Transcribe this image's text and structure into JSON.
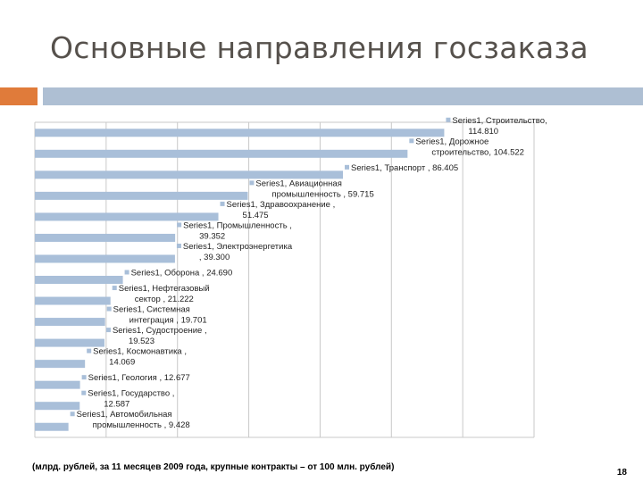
{
  "slide": {
    "title": "Основные направления госзаказа",
    "footnote": "(млрд. рублей, за 11 месяцев 2009 года, крупные контракты – от 100 млн. рублей)",
    "page_number": "18"
  },
  "colors": {
    "bar": "#a9bfd9",
    "grid": "#c8c8c8",
    "accent_orange": "#e07b3a",
    "accent_blue": "#aebfd3",
    "title": "#56514c"
  },
  "chart_data": {
    "type": "bar",
    "orientation": "horizontal",
    "grid": true,
    "xlim": [
      0,
      140
    ],
    "series": [
      {
        "name": "Series1",
        "values": [
          114.81,
          104.522,
          86.405,
          59.715,
          51.475,
          39.352,
          39.3,
          24.69,
          21.222,
          19.701,
          19.523,
          14.069,
          12.677,
          12.587,
          9.428
        ]
      }
    ],
    "categories": [
      "Строительство",
      "Дорожное строительство",
      "Транспорт",
      "Авиационная промышленность",
      "Здравоохранение",
      "Промышленность",
      "Электроэнергетика",
      "Оборона",
      "Нефтегазовый сектор",
      "Системная интеграция",
      "Судостроение",
      "Космонавтика",
      "Геология",
      "Государство",
      "Автомобильная промышленность"
    ],
    "data_labels": [
      [
        "Series1, Строительство,",
        "114.810"
      ],
      [
        "Series1, Дорожное",
        "строительство, 104.522"
      ],
      [
        "Series1, Транспорт , 86.405"
      ],
      [
        "Series1, Авиационная",
        "промышленность , 59.715"
      ],
      [
        "Series1, Здравоохранение ,",
        "51.475"
      ],
      [
        "Series1, Промышленность ,",
        "39.352"
      ],
      [
        "Series1, Электроэнергетика",
        ", 39.300"
      ],
      [
        "Series1, Оборона , 24.690"
      ],
      [
        "Series1, Нефтегазовый",
        "сектор , 21.222"
      ],
      [
        "Series1, Системная",
        "интеграция , 19.701"
      ],
      [
        "Series1, Судостроение ,",
        "19.523"
      ],
      [
        "Series1, Космонавтика ,",
        "14.069"
      ],
      [
        "Series1, Геология , 12.677"
      ],
      [
        "Series1, Государство ,",
        "12.587"
      ],
      [
        "Series1, Автомобильная",
        "промышленность , 9.428"
      ]
    ]
  }
}
